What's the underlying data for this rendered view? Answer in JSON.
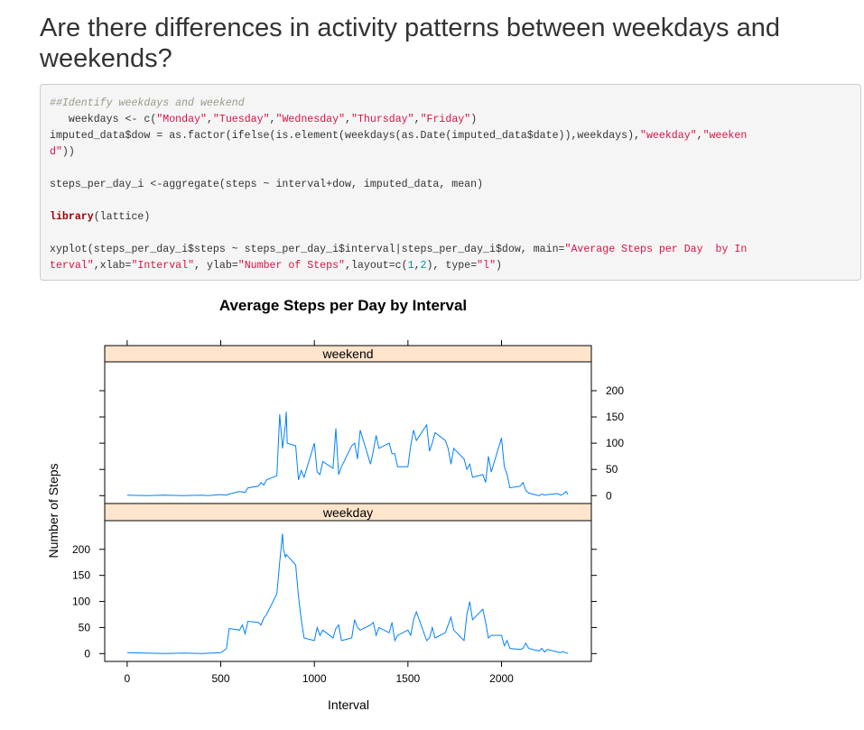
{
  "heading": "Are there differences in activity patterns between weekdays and weekends?",
  "code": {
    "lines": [
      [
        {
          "t": "##Identify weekdays and weekend",
          "c": "comment"
        }
      ],
      [
        {
          "t": "   weekdays <- c(",
          "c": ""
        },
        {
          "t": "\"Monday\"",
          "c": "string"
        },
        {
          "t": ",",
          "c": ""
        },
        {
          "t": "\"Tuesday\"",
          "c": "string"
        },
        {
          "t": ",",
          "c": ""
        },
        {
          "t": "\"Wednesday\"",
          "c": "string"
        },
        {
          "t": ",",
          "c": ""
        },
        {
          "t": "\"Thursday\"",
          "c": "string"
        },
        {
          "t": ",",
          "c": ""
        },
        {
          "t": "\"Friday\"",
          "c": "string"
        },
        {
          "t": ")",
          "c": ""
        }
      ],
      [
        {
          "t": "imputed_data$dow = as.factor(ifelse(is.element(weekdays(as.Date(imputed_data$date)),weekdays),",
          "c": ""
        },
        {
          "t": "\"weekday\"",
          "c": "string"
        },
        {
          "t": ",",
          "c": ""
        },
        {
          "t": "\"weeken",
          "c": "string"
        }
      ],
      [
        {
          "t": "d\"",
          "c": "string"
        },
        {
          "t": "))",
          "c": ""
        }
      ],
      [],
      [
        {
          "t": "steps_per_day_i <-aggregate(steps ~ interval+dow, imputed_data, mean)",
          "c": ""
        }
      ],
      [],
      [
        {
          "t": "library",
          "c": "keyword"
        },
        {
          "t": "(lattice)",
          "c": ""
        }
      ],
      [],
      [
        {
          "t": "xyplot(steps_per_day_i$steps ~ steps_per_day_i$interval|steps_per_day_i$dow, main=",
          "c": ""
        },
        {
          "t": "\"Average Steps per Day  by In",
          "c": "string"
        }
      ],
      [
        {
          "t": "terval\"",
          "c": "string"
        },
        {
          "t": ",xlab=",
          "c": ""
        },
        {
          "t": "\"Interval\"",
          "c": "string"
        },
        {
          "t": ", ylab=",
          "c": ""
        },
        {
          "t": "\"Number of Steps\"",
          "c": "string"
        },
        {
          "t": ",layout=c(",
          "c": ""
        },
        {
          "t": "1",
          "c": "number"
        },
        {
          "t": ",",
          "c": ""
        },
        {
          "t": "2",
          "c": "number"
        },
        {
          "t": "), type=",
          "c": ""
        },
        {
          "t": "\"l\"",
          "c": "string"
        },
        {
          "t": ")",
          "c": ""
        }
      ]
    ]
  },
  "colors": {
    "line": "#0080ff",
    "strip": "#ffe5cc",
    "frame": "#000000"
  },
  "chart_data": {
    "type": "line",
    "title": "Average Steps per Day  by Interval",
    "xlabel": "Interval",
    "ylabel": "Number of Steps",
    "xlim": [
      -120,
      2480
    ],
    "ylim": [
      -15,
      255
    ],
    "x_ticks": [
      0,
      500,
      1000,
      1500,
      2000
    ],
    "y_ticks": [
      0,
      50,
      100,
      150,
      200
    ],
    "panels": [
      {
        "name": "weekend",
        "x": [
          0,
          100,
          200,
          300,
          400,
          430,
          500,
          530,
          545,
          600,
          630,
          645,
          700,
          715,
          730,
          745,
          800,
          815,
          830,
          845,
          850,
          855,
          900,
          915,
          930,
          945,
          1000,
          1015,
          1030,
          1045,
          1100,
          1115,
          1130,
          1145,
          1200,
          1215,
          1230,
          1245,
          1300,
          1315,
          1330,
          1345,
          1400,
          1415,
          1430,
          1445,
          1500,
          1515,
          1530,
          1545,
          1600,
          1615,
          1630,
          1645,
          1700,
          1715,
          1730,
          1745,
          1800,
          1815,
          1830,
          1845,
          1900,
          1915,
          1930,
          1945,
          2000,
          2015,
          2030,
          2045,
          2100,
          2115,
          2130,
          2145,
          2200,
          2215,
          2230,
          2245,
          2300,
          2315,
          2330,
          2345,
          2355
        ],
        "values": [
          1,
          0,
          1,
          0,
          1,
          0,
          2,
          1,
          3,
          8,
          6,
          15,
          18,
          25,
          20,
          30,
          38,
          155,
          90,
          135,
          160,
          100,
          95,
          30,
          48,
          35,
          100,
          45,
          40,
          65,
          52,
          128,
          40,
          55,
          95,
          100,
          70,
          125,
          60,
          85,
          115,
          90,
          100,
          80,
          80,
          55,
          55,
          95,
          125,
          105,
          135,
          85,
          100,
          120,
          105,
          90,
          60,
          90,
          70,
          50,
          60,
          35,
          40,
          25,
          75,
          45,
          110,
          55,
          40,
          15,
          18,
          25,
          10,
          5,
          0,
          3,
          1,
          2,
          4,
          1,
          3,
          8,
          2
        ]
      },
      {
        "name": "weekday",
        "x": [
          0,
          100,
          200,
          300,
          400,
          500,
          515,
          530,
          545,
          600,
          615,
          630,
          645,
          700,
          715,
          730,
          745,
          800,
          815,
          830,
          835,
          845,
          850,
          900,
          915,
          930,
          945,
          1000,
          1015,
          1030,
          1045,
          1100,
          1115,
          1130,
          1145,
          1200,
          1215,
          1230,
          1245,
          1300,
          1315,
          1330,
          1345,
          1400,
          1415,
          1430,
          1445,
          1500,
          1515,
          1530,
          1545,
          1600,
          1615,
          1630,
          1645,
          1700,
          1715,
          1730,
          1745,
          1800,
          1815,
          1830,
          1845,
          1900,
          1915,
          1930,
          1945,
          2000,
          2015,
          2030,
          2045,
          2100,
          2115,
          2130,
          2145,
          2200,
          2215,
          2230,
          2245,
          2300,
          2315,
          2330,
          2345,
          2355
        ],
        "values": [
          2,
          1,
          0,
          1,
          0,
          2,
          5,
          10,
          48,
          45,
          55,
          38,
          62,
          60,
          55,
          68,
          75,
          115,
          175,
          230,
          200,
          185,
          190,
          170,
          110,
          65,
          30,
          25,
          50,
          35,
          45,
          30,
          48,
          55,
          25,
          30,
          65,
          50,
          45,
          55,
          60,
          35,
          50,
          40,
          60,
          25,
          35,
          45,
          35,
          65,
          80,
          25,
          30,
          50,
          30,
          40,
          55,
          70,
          45,
          25,
          75,
          100,
          65,
          85,
          60,
          30,
          35,
          35,
          15,
          25,
          10,
          8,
          10,
          20,
          10,
          5,
          10,
          3,
          8,
          3,
          2,
          4,
          1,
          1
        ]
      }
    ]
  }
}
